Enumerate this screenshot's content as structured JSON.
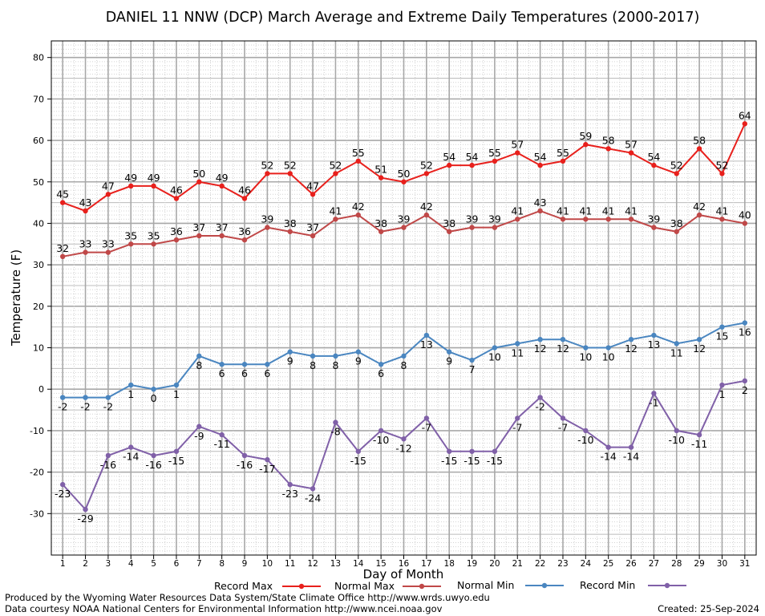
{
  "chart_data": {
    "type": "line",
    "title": "DANIEL 11 NNW (DCP) March Average and Extreme Daily Temperatures (2000-2017)",
    "xlabel": "Day of Month",
    "ylabel": "Temperature (F)",
    "xlim": [
      0.5,
      31.5
    ],
    "ylim": [
      -40,
      84
    ],
    "yticks": [
      -30,
      -20,
      -10,
      0,
      10,
      20,
      30,
      40,
      50,
      60,
      70,
      80
    ],
    "x": [
      1,
      2,
      3,
      4,
      5,
      6,
      7,
      8,
      9,
      10,
      11,
      12,
      13,
      14,
      15,
      16,
      17,
      18,
      19,
      20,
      21,
      22,
      23,
      24,
      25,
      26,
      27,
      28,
      29,
      30,
      31
    ],
    "grid": true,
    "legend_position": "bottom",
    "series": [
      {
        "name": "Record Max",
        "color": "#e8201c",
        "label_pos": "above",
        "values": [
          45,
          43,
          47,
          49,
          49,
          46,
          50,
          49,
          46,
          52,
          52,
          47,
          52,
          55,
          51,
          50,
          52,
          54,
          54,
          55,
          57,
          54,
          55,
          59,
          58,
          57,
          54,
          52,
          58,
          52,
          64
        ]
      },
      {
        "name": "Normal Max",
        "color": "#c04848",
        "label_pos": "above",
        "values": [
          32,
          33,
          33,
          35,
          35,
          36,
          37,
          37,
          36,
          39,
          38,
          37,
          41,
          42,
          38,
          39,
          42,
          38,
          39,
          39,
          41,
          43,
          41,
          41,
          41,
          41,
          39,
          38,
          42,
          41,
          40
        ]
      },
      {
        "name": "Normal Min",
        "color": "#4a86c0",
        "label_pos": "below",
        "values": [
          -2,
          -2,
          -2,
          1,
          0,
          1,
          8,
          6,
          6,
          6,
          9,
          8,
          8,
          9,
          6,
          8,
          13,
          9,
          7,
          10,
          11,
          12,
          12,
          10,
          10,
          12,
          13,
          11,
          12,
          15,
          16
        ]
      },
      {
        "name": "Record Min",
        "color": "#8060a8",
        "label_pos": "below",
        "values": [
          -23,
          -29,
          -16,
          -14,
          -16,
          -15,
          -9,
          -11,
          -16,
          -17,
          -23,
          -24,
          -8,
          -15,
          -10,
          -12,
          -7,
          -15,
          -15,
          -15,
          -7,
          -2,
          -7,
          -10,
          -14,
          -14,
          -1,
          -10,
          -11,
          1,
          2
        ]
      }
    ]
  },
  "footer": {
    "credit_line1": "Produced by the Wyoming Water Resources Data System/State Climate Office http://www.wrds.uwyo.edu",
    "credit_line2": "Data courtesy NOAA National Centers for Environmental Information http://www.ncei.noaa.gov",
    "created": "Created:  25-Sep-2024"
  }
}
